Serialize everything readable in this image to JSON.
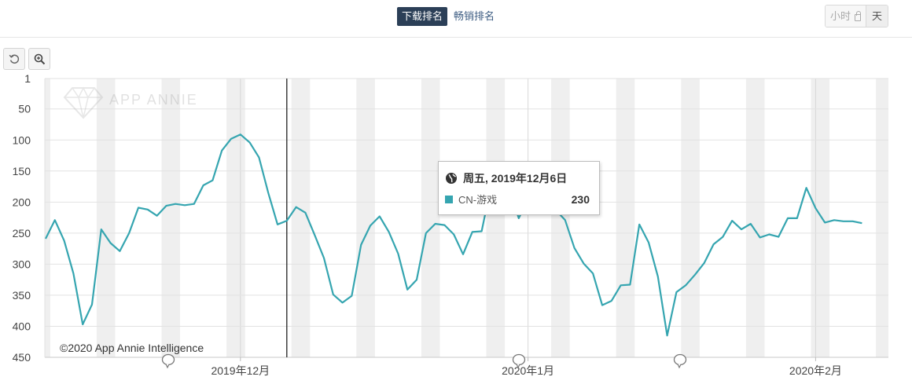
{
  "tabs": {
    "downloads": "下载排名",
    "grossing": "畅销排名"
  },
  "granularity": {
    "hourly": "小时",
    "daily": "天"
  },
  "watermark": "APP ANNIE",
  "credit": "©2020 App Annie Intelligence",
  "tooltip": {
    "date": "周五, 2019年12月6日",
    "series": "CN-游戏",
    "value": "230"
  },
  "colors": {
    "series": "#35a5b0",
    "tab_active": "#2b3f57",
    "band": "#efefef"
  },
  "chart_data": {
    "type": "line",
    "y_axis": {
      "reversed": true,
      "ticks": [
        1,
        50,
        100,
        150,
        200,
        250,
        300,
        350,
        400,
        450
      ],
      "range": [
        1,
        450
      ]
    },
    "x_axis": {
      "labels": [
        "2019年12月",
        "2020年1月",
        "2020年2月"
      ]
    },
    "start_date": "2019-11-10",
    "weekend_bands": true,
    "series": [
      {
        "name": "CN-游戏",
        "color": "#35a5b0",
        "values": [
          259,
          229,
          262,
          315,
          397,
          365,
          244,
          266,
          279,
          250,
          209,
          212,
          222,
          206,
          203,
          205,
          203,
          173,
          165,
          117,
          98,
          91,
          104,
          128,
          185,
          236,
          230,
          208,
          217,
          253,
          290,
          349,
          362,
          351,
          269,
          238,
          223,
          248,
          283,
          341,
          325,
          250,
          235,
          237,
          252,
          284,
          248,
          247,
          175,
          160,
          180,
          226,
          196,
          202,
          215,
          213,
          229,
          274,
          299,
          315,
          366,
          359,
          334,
          333,
          236,
          265,
          320,
          415,
          345,
          334,
          317,
          298,
          268,
          256,
          230,
          244,
          235,
          257,
          252,
          256,
          226,
          226,
          177,
          210,
          233,
          229,
          231,
          231,
          234
        ]
      }
    ],
    "annotations": {
      "vertical_marker_date": "2019-12-06",
      "event_icons": 3
    }
  }
}
